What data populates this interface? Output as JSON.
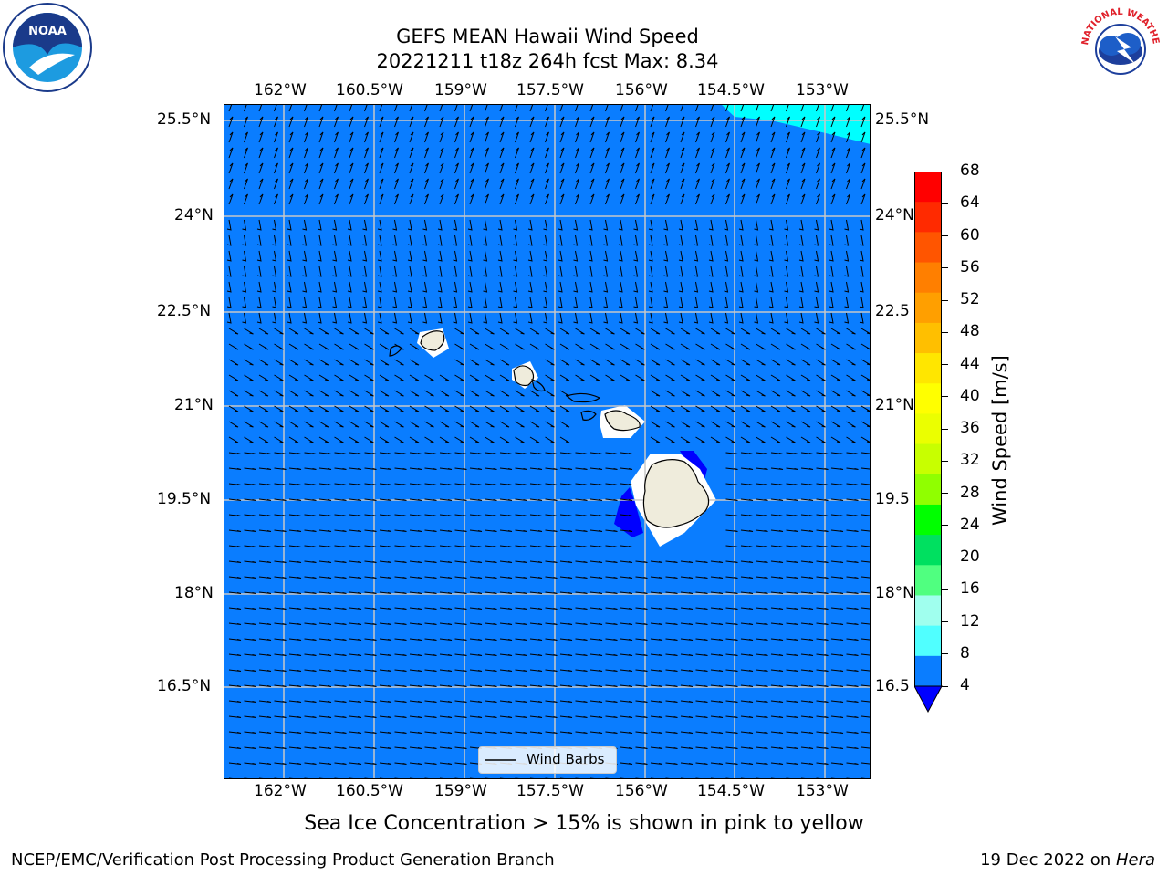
{
  "title": {
    "line1": "GEFS MEAN Hawaii Wind Speed",
    "line2": "20221211 t18z 264h fcst   Max: 8.34"
  },
  "map": {
    "lon_labels": [
      "162°W",
      "160.5°W",
      "159°W",
      "157.5°W",
      "156°W",
      "154.5°W",
      "153°W"
    ],
    "lat_labels": [
      "25.5°N",
      "24°N",
      "22.5°N",
      "21°N",
      "19.5°N",
      "18°N",
      "16.5°N"
    ],
    "lat_labels_right": [
      "25.5°N",
      "24°N",
      "22.5",
      "21°N",
      "19.5",
      "18°N",
      "16.5"
    ],
    "ocean_color": "#0a7dff",
    "land_color": "#efecdc",
    "legend_label": "Wind Barbs"
  },
  "colorbar": {
    "title": "Wind Speed [m/s]",
    "ticks": [
      "68",
      "64",
      "60",
      "56",
      "52",
      "48",
      "44",
      "40",
      "36",
      "32",
      "28",
      "24",
      "20",
      "16",
      "12",
      "8",
      "4"
    ],
    "colors": [
      "#ff0000",
      "#ff2a00",
      "#ff5500",
      "#ff7f00",
      "#ff9f00",
      "#ffbf00",
      "#ffe600",
      "#ffff00",
      "#ebff00",
      "#c8ff00",
      "#90ff00",
      "#00ff00",
      "#00e060",
      "#50ff80",
      "#a0ffee",
      "#50ffff",
      "#00ffff",
      "#0a7dff"
    ],
    "under_color": "#0000ff"
  },
  "caption": "Sea Ice Concentration > 15% is shown in pink to yellow",
  "footer": {
    "left": "NCEP/EMC/Verification Post Processing Product Generation Branch",
    "right_prefix": "19 Dec 2022 on ",
    "right_host": "Hera"
  },
  "logos": {
    "noaa_text": "NOAA",
    "nws_text": "NATIONAL WEATHER SERVICE"
  }
}
